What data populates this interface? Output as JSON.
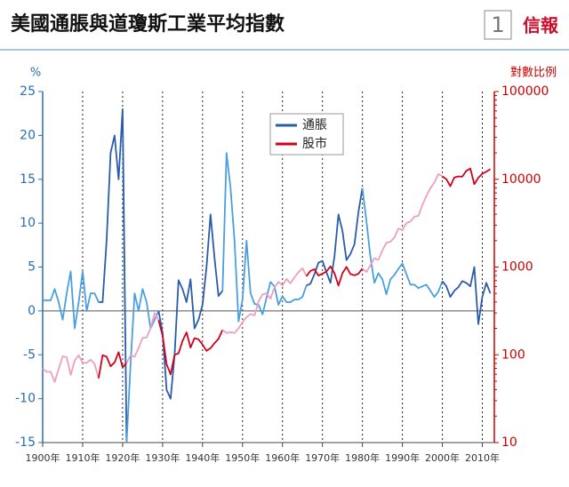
{
  "chart_data": {
    "type": "line",
    "title": "美國通脹與道瓊斯工業平均指數",
    "badge": "1",
    "source": "信報",
    "ylabel": "%",
    "y2label": "對數比例",
    "x": [
      1900,
      1901,
      1902,
      1903,
      1904,
      1905,
      1906,
      1907,
      1908,
      1909,
      1910,
      1911,
      1912,
      1913,
      1914,
      1915,
      1916,
      1917,
      1918,
      1919,
      1920,
      1921,
      1922,
      1923,
      1924,
      1925,
      1926,
      1927,
      1928,
      1929,
      1930,
      1931,
      1932,
      1933,
      1934,
      1935,
      1936,
      1937,
      1938,
      1939,
      1940,
      1941,
      1942,
      1943,
      1944,
      1945,
      1946,
      1947,
      1948,
      1949,
      1950,
      1951,
      1952,
      1953,
      1954,
      1955,
      1956,
      1957,
      1958,
      1959,
      1960,
      1961,
      1962,
      1963,
      1964,
      1965,
      1966,
      1967,
      1968,
      1969,
      1970,
      1971,
      1972,
      1973,
      1974,
      1975,
      1976,
      1977,
      1978,
      1979,
      1980,
      1981,
      1982,
      1983,
      1984,
      1985,
      1986,
      1987,
      1988,
      1989,
      1990,
      1991,
      1992,
      1993,
      1994,
      1995,
      1996,
      1997,
      1998,
      1999,
      2000,
      2001,
      2002,
      2003,
      2004,
      2005,
      2006,
      2007,
      2008,
      2009,
      2010,
      2011,
      2012
    ],
    "series": [
      {
        "name": "通脹",
        "color": "#2a5caa",
        "alt_color": "#4a9fe0",
        "values": [
          1.2,
          1.2,
          1.2,
          2.5,
          1,
          -1,
          2,
          4.5,
          -2,
          1,
          4.5,
          0,
          2,
          2,
          1,
          1,
          8,
          18,
          20,
          15,
          23,
          -15,
          -6,
          2,
          0,
          2.5,
          1,
          -2,
          -1,
          0,
          -2.5,
          -9,
          -10,
          -5,
          3.5,
          2.5,
          1,
          3.6,
          -2,
          -1,
          0.7,
          5,
          11,
          6,
          1.7,
          2.3,
          18,
          14,
          8,
          -1.2,
          1.3,
          8,
          2,
          0.8,
          0.7,
          -0.4,
          1.5,
          3.3,
          2.8,
          0.7,
          1.7,
          1,
          1,
          1.3,
          1.3,
          1.6,
          2.9,
          3.1,
          4.2,
          5.5,
          5.7,
          4.4,
          3.2,
          6.2,
          11,
          9.1,
          5.8,
          6.5,
          7.6,
          11.3,
          14,
          10.3,
          6.2,
          3.2,
          4.3,
          3.6,
          1.9,
          3.6,
          4.1,
          4.8,
          5.4,
          4.2,
          3,
          3,
          2.6,
          2.8,
          3,
          2.3,
          1.6,
          2.2,
          3.4,
          2.8,
          1.6,
          2.3,
          2.7,
          3.4,
          3.2,
          2.8,
          5,
          -1.5,
          1.6,
          3.2,
          2
        ]
      },
      {
        "name": "股市",
        "color": "#d0021b",
        "alt_color": "#ee9fc0",
        "axis": "y2",
        "values": [
          70,
          64,
          64,
          49,
          69,
          96,
          94,
          59,
          86,
          99,
          81,
          81,
          88,
          79,
          54,
          99,
          95,
          74,
          82,
          107,
          72,
          81,
          99,
          95,
          120,
          156,
          157,
          200,
          300,
          248,
          165,
          78,
          60,
          100,
          104,
          144,
          180,
          121,
          155,
          150,
          131,
          111,
          119,
          136,
          152,
          193,
          177,
          181,
          177,
          200,
          235,
          269,
          292,
          281,
          404,
          488,
          500,
          436,
          584,
          679,
          616,
          731,
          652,
          763,
          874,
          969,
          786,
          905,
          944,
          800,
          839,
          890,
          1020,
          851,
          616,
          852,
          1005,
          831,
          805,
          839,
          964,
          875,
          1047,
          1259,
          1212,
          1547,
          1896,
          1939,
          2169,
          2753,
          2634,
          3169,
          3301,
          3754,
          3834,
          5117,
          6448,
          7908,
          9181,
          11497,
          10787,
          10022,
          8342,
          10454,
          10783,
          10718,
          12463,
          13265,
          8776,
          10428,
          11578,
          12218,
          13104
        ]
      }
    ],
    "highlight_periods": [
      [
        1914,
        1921
      ],
      [
        1929,
        1945
      ],
      [
        1966,
        1980
      ],
      [
        2000,
        2013
      ]
    ],
    "xlim": [
      1900,
      2013
    ],
    "xticks": [
      {
        "value": 1900,
        "label": "1900年"
      },
      {
        "value": 1910,
        "label": "1910年"
      },
      {
        "value": 1920,
        "label": "1920年"
      },
      {
        "value": 1930,
        "label": "1930年"
      },
      {
        "value": 1940,
        "label": "1940年"
      },
      {
        "value": 1950,
        "label": "1950年"
      },
      {
        "value": 1960,
        "label": "1960年"
      },
      {
        "value": 1970,
        "label": "1970年"
      },
      {
        "value": 1980,
        "label": "1980年"
      },
      {
        "value": 1990,
        "label": "1990年"
      },
      {
        "value": 2000,
        "label": "2000年"
      },
      {
        "value": 2010,
        "label": "2010年"
      }
    ],
    "ylim": [
      -15,
      25
    ],
    "yticks": [
      -15,
      -10,
      -5,
      0,
      5,
      10,
      15,
      20,
      25
    ],
    "y2lim": [
      10,
      100000
    ],
    "y2ticks": [
      10,
      100,
      1000,
      10000,
      100000
    ],
    "y2_log": true,
    "legend": "top"
  }
}
